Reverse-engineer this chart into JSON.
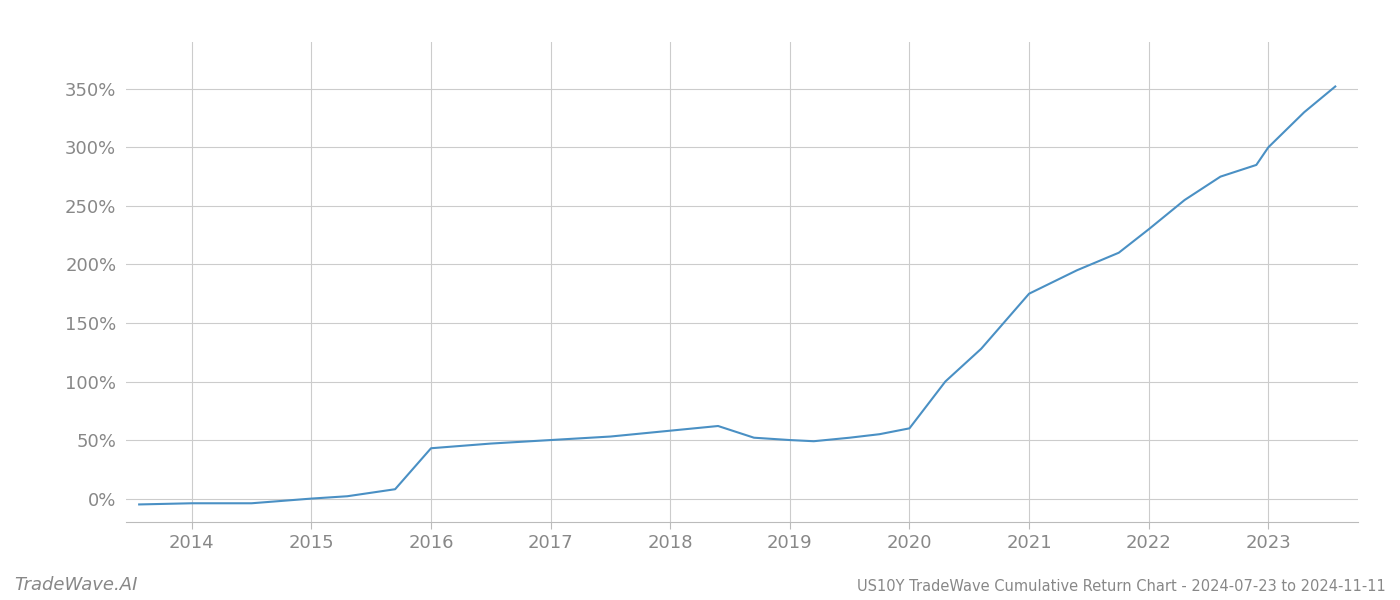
{
  "title": "US10Y TradeWave Cumulative Return Chart - 2024-07-23 to 2024-11-11",
  "watermark": "TradeWave.AI",
  "line_color": "#4a90c4",
  "background_color": "#ffffff",
  "grid_color": "#cccccc",
  "x_values": [
    2013.56,
    2014.0,
    2014.5,
    2015.0,
    2015.3,
    2015.7,
    2016.0,
    2016.5,
    2017.0,
    2017.5,
    2018.0,
    2018.4,
    2018.7,
    2019.0,
    2019.2,
    2019.5,
    2019.75,
    2020.0,
    2020.3,
    2020.6,
    2021.0,
    2021.4,
    2021.75,
    2022.0,
    2022.3,
    2022.6,
    2022.9,
    2023.0,
    2023.3,
    2023.56
  ],
  "y_values": [
    -5,
    -4,
    -4,
    0,
    2,
    8,
    43,
    47,
    50,
    53,
    58,
    62,
    52,
    50,
    49,
    52,
    55,
    60,
    100,
    128,
    175,
    195,
    210,
    230,
    255,
    275,
    285,
    300,
    330,
    352
  ],
  "x_ticks": [
    2014,
    2015,
    2016,
    2017,
    2018,
    2019,
    2020,
    2021,
    2022,
    2023
  ],
  "y_ticks": [
    0,
    50,
    100,
    150,
    200,
    250,
    300,
    350
  ],
  "ylim": [
    -20,
    390
  ],
  "xlim": [
    2013.45,
    2023.75
  ],
  "line_width": 1.5,
  "title_fontsize": 10.5,
  "tick_fontsize": 13,
  "watermark_fontsize": 13,
  "label_color": "#888888",
  "spine_color": "#bbbbbb"
}
